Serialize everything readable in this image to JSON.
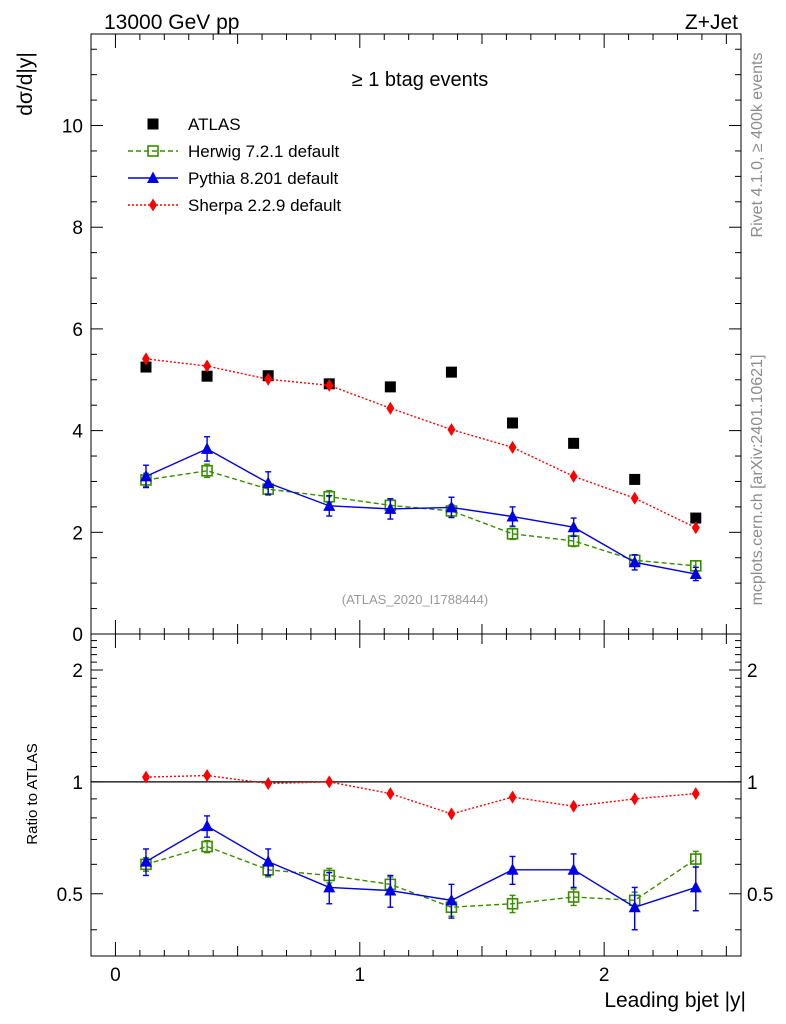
{
  "header": {
    "left_title": "13000 GeV pp",
    "right_title": "Z+Jet",
    "plot_title": "≥ 1 btag events",
    "analysis_id": "(ATLAS_2020_I1788444)",
    "side_label_top": "Rivet 4.1.0, ≥ 400k events",
    "side_label_bottom": "mcplots.cern.ch [arXiv:2401.10621]"
  },
  "chart_data": [
    {
      "type": "scatter",
      "role": "main",
      "title": "≥ 1 btag events",
      "xlabel": "Leading bjet |y|",
      "ylabel": "dσ/d|y|",
      "xlim": [
        -0.1,
        2.56
      ],
      "ylim": [
        0,
        11.8
      ],
      "y_ticks": [
        0,
        2,
        4,
        6,
        8,
        10
      ],
      "y_tick_labels": [
        "0",
        "2",
        "4",
        "6",
        "8",
        "10"
      ],
      "x": [
        0.125,
        0.375,
        0.625,
        0.875,
        1.125,
        1.375,
        1.625,
        1.875,
        2.125,
        2.375
      ],
      "legend_position": "top-left",
      "series": [
        {
          "name": "ATLAS",
          "color": "#000000",
          "marker": "square",
          "line": "none",
          "values": [
            5.25,
            5.07,
            5.08,
            4.92,
            4.86,
            5.15,
            4.15,
            3.75,
            3.04,
            2.28
          ]
        },
        {
          "name": "Herwig 7.2.1 default",
          "color": "#3a8c00",
          "marker": "open-square",
          "line": "dashed",
          "values": [
            3.03,
            3.21,
            2.85,
            2.7,
            2.53,
            2.42,
            1.97,
            1.83,
            1.45,
            1.34
          ],
          "errors": [
            0.13,
            0.13,
            0.12,
            0.12,
            0.12,
            0.12,
            0.11,
            0.11,
            0.1,
            0.1
          ]
        },
        {
          "name": "Pythia 8.201 default",
          "color": "#0000e6",
          "marker": "triangle",
          "line": "solid",
          "values": [
            3.1,
            3.64,
            2.97,
            2.52,
            2.46,
            2.49,
            2.31,
            2.1,
            1.41,
            1.18
          ],
          "errors": [
            0.22,
            0.24,
            0.22,
            0.2,
            0.2,
            0.2,
            0.19,
            0.18,
            0.15,
            0.13
          ]
        },
        {
          "name": "Sherpa 2.2.9 default",
          "color": "#ff0000",
          "marker": "diamond",
          "line": "dotted",
          "values": [
            5.41,
            5.27,
            5.01,
            4.89,
            4.44,
            4.02,
            3.67,
            3.1,
            2.67,
            2.09
          ]
        }
      ]
    },
    {
      "type": "scatter",
      "role": "ratio",
      "xlabel": "Leading bjet |y|",
      "ylabel": "Ratio to ATLAS",
      "xlim": [
        -0.1,
        2.56
      ],
      "ylim": [
        0.34,
        2.5
      ],
      "y_ticks": [
        0.5,
        1,
        2
      ],
      "y_tick_labels": [
        "0.5",
        "1",
        "2"
      ],
      "x_ticks": [
        0,
        1,
        2
      ],
      "x_tick_labels": [
        "0",
        "1",
        "2"
      ],
      "x": [
        0.125,
        0.375,
        0.625,
        0.875,
        1.125,
        1.375,
        1.625,
        1.875,
        2.125,
        2.375
      ],
      "reference_line": 1,
      "series": [
        {
          "name": "Herwig 7.2.1 default",
          "color": "#3a8c00",
          "marker": "open-square",
          "line": "dashed",
          "values": [
            0.6,
            0.67,
            0.58,
            0.56,
            0.53,
            0.46,
            0.47,
            0.49,
            0.48,
            0.62
          ],
          "errors": [
            0.025,
            0.025,
            0.025,
            0.025,
            0.025,
            0.025,
            0.025,
            0.025,
            0.025,
            0.03
          ]
        },
        {
          "name": "Pythia 8.201 default",
          "color": "#0000e6",
          "marker": "triangle",
          "line": "solid",
          "values": [
            0.61,
            0.76,
            0.61,
            0.52,
            0.51,
            0.48,
            0.58,
            0.58,
            0.46,
            0.52
          ],
          "errors": [
            0.05,
            0.05,
            0.05,
            0.05,
            0.05,
            0.05,
            0.05,
            0.06,
            0.06,
            0.07
          ]
        },
        {
          "name": "Sherpa 2.2.9 default",
          "color": "#ff0000",
          "marker": "diamond",
          "line": "dotted",
          "values": [
            1.03,
            1.04,
            0.99,
            1.0,
            0.93,
            0.82,
            0.91,
            0.86,
            0.9,
            0.93
          ]
        }
      ]
    }
  ]
}
